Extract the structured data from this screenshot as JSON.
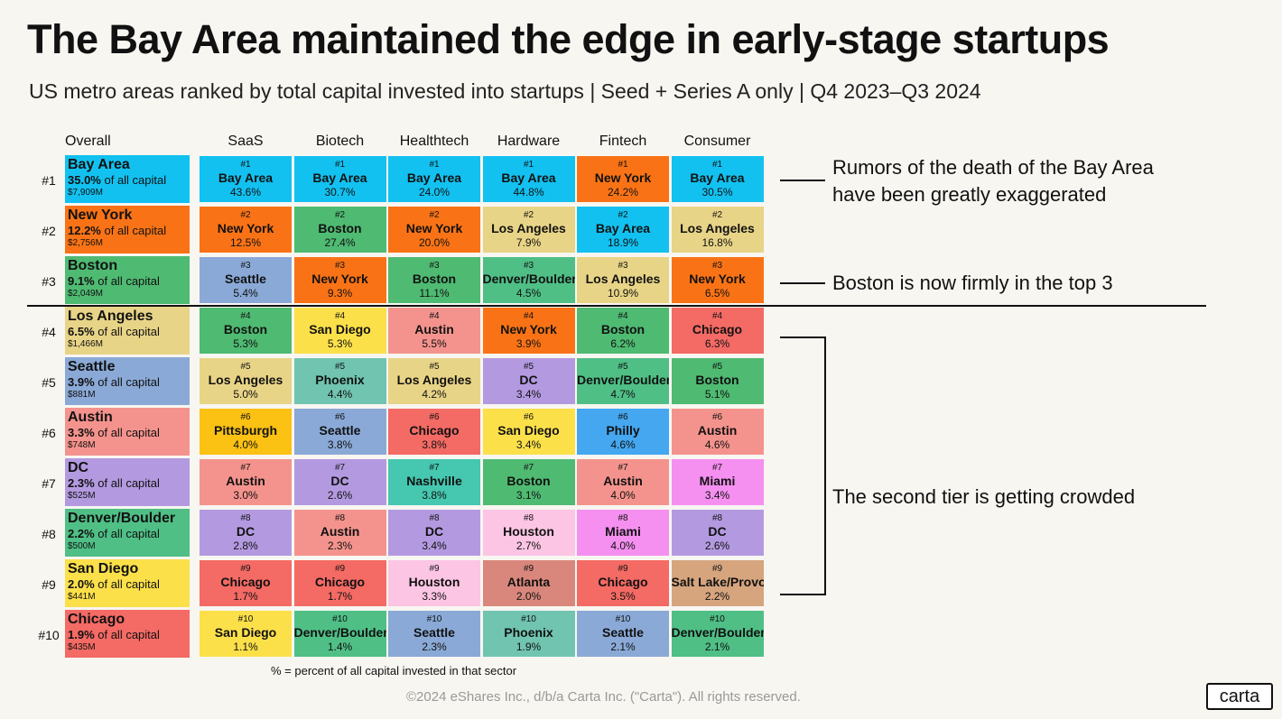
{
  "title": "The Bay Area maintained the edge in early-stage startups",
  "subtitle": "US metro areas ranked by total capital invested into startups | Seed + Series A only | Q4 2023–Q3 2024",
  "footnote": "% = percent of all capital invested in that sector",
  "copyright": "©2024 eShares Inc., d/b/a Carta Inc. (\"Carta\"). All rights reserved.",
  "logo": "carta",
  "annotations": [
    "Rumors of the death of the Bay Area have been greatly exaggerated",
    "Boston is now firmly in the top 3",
    "The second tier is getting crowded"
  ],
  "colors": {
    "Bay Area": "#12c1f0",
    "New York": "#f97316",
    "Boston": "#4fba72",
    "Los Angeles": "#e8d487",
    "Seattle": "#8aa9d6",
    "Austin": "#f4938d",
    "DC": "#b39ae0",
    "Denver/Boulder": "#4fbf86",
    "San Diego": "#fbe04a",
    "Chicago": "#f46a64",
    "Pittsburgh": "#fbc113",
    "Phoenix": "#70c4b0",
    "Nashville": "#45c7b0",
    "Houston": "#fcc5e4",
    "Atlanta": "#d9877c",
    "Philly": "#44a7f0",
    "Miami": "#f58ff0",
    "Salt Lake/Provo": "#d6a57e"
  },
  "chart_data": {
    "type": "table",
    "title": "The Bay Area maintained the edge in early-stage startups",
    "columns": [
      "Overall",
      "SaaS",
      "Biotech",
      "Healthtech",
      "Hardware",
      "Fintech",
      "Consumer"
    ],
    "overall": [
      {
        "rank": "#1",
        "metro": "Bay Area",
        "pct": "35.0%",
        "pct_suffix": " of all capital",
        "amount": "$7,909M"
      },
      {
        "rank": "#2",
        "metro": "New York",
        "pct": "12.2%",
        "pct_suffix": " of all capital",
        "amount": "$2,756M"
      },
      {
        "rank": "#3",
        "metro": "Boston",
        "pct": "9.1%",
        "pct_suffix": " of all capital",
        "amount": "$2,049M"
      },
      {
        "rank": "#4",
        "metro": "Los Angeles",
        "pct": "6.5%",
        "pct_suffix": " of all capital",
        "amount": "$1,466M"
      },
      {
        "rank": "#5",
        "metro": "Seattle",
        "pct": "3.9%",
        "pct_suffix": " of all capital",
        "amount": "$881M"
      },
      {
        "rank": "#6",
        "metro": "Austin",
        "pct": "3.3%",
        "pct_suffix": " of all capital",
        "amount": "$748M"
      },
      {
        "rank": "#7",
        "metro": "DC",
        "pct": "2.3%",
        "pct_suffix": " of all capital",
        "amount": "$525M"
      },
      {
        "rank": "#8",
        "metro": "Denver/Boulder",
        "pct": "2.2%",
        "pct_suffix": " of all capital",
        "amount": "$500M"
      },
      {
        "rank": "#9",
        "metro": "San Diego",
        "pct": "2.0%",
        "pct_suffix": " of all capital",
        "amount": "$441M"
      },
      {
        "rank": "#10",
        "metro": "Chicago",
        "pct": "1.9%",
        "pct_suffix": " of all capital",
        "amount": "$435M"
      }
    ],
    "sectors": [
      {
        "name": "SaaS",
        "entries": [
          {
            "rank": "#1",
            "metro": "Bay Area",
            "pct": "43.6%"
          },
          {
            "rank": "#2",
            "metro": "New York",
            "pct": "12.5%"
          },
          {
            "rank": "#3",
            "metro": "Seattle",
            "pct": "5.4%"
          },
          {
            "rank": "#4",
            "metro": "Boston",
            "pct": "5.3%"
          },
          {
            "rank": "#5",
            "metro": "Los Angeles",
            "pct": "5.0%"
          },
          {
            "rank": "#6",
            "metro": "Pittsburgh",
            "pct": "4.0%"
          },
          {
            "rank": "#7",
            "metro": "Austin",
            "pct": "3.0%"
          },
          {
            "rank": "#8",
            "metro": "DC",
            "pct": "2.8%"
          },
          {
            "rank": "#9",
            "metro": "Chicago",
            "pct": "1.7%"
          },
          {
            "rank": "#10",
            "metro": "San Diego",
            "pct": "1.1%"
          }
        ]
      },
      {
        "name": "Biotech",
        "entries": [
          {
            "rank": "#1",
            "metro": "Bay Area",
            "pct": "30.7%"
          },
          {
            "rank": "#2",
            "metro": "Boston",
            "pct": "27.4%"
          },
          {
            "rank": "#3",
            "metro": "New York",
            "pct": "9.3%"
          },
          {
            "rank": "#4",
            "metro": "San Diego",
            "pct": "5.3%"
          },
          {
            "rank": "#5",
            "metro": "Phoenix",
            "pct": "4.4%"
          },
          {
            "rank": "#6",
            "metro": "Seattle",
            "pct": "3.8%"
          },
          {
            "rank": "#7",
            "metro": "DC",
            "pct": "2.6%"
          },
          {
            "rank": "#8",
            "metro": "Austin",
            "pct": "2.3%"
          },
          {
            "rank": "#9",
            "metro": "Chicago",
            "pct": "1.7%"
          },
          {
            "rank": "#10",
            "metro": "Denver/Boulder",
            "pct": "1.4%"
          }
        ]
      },
      {
        "name": "Healthtech",
        "entries": [
          {
            "rank": "#1",
            "metro": "Bay Area",
            "pct": "24.0%"
          },
          {
            "rank": "#2",
            "metro": "New York",
            "pct": "20.0%"
          },
          {
            "rank": "#3",
            "metro": "Boston",
            "pct": "11.1%"
          },
          {
            "rank": "#4",
            "metro": "Austin",
            "pct": "5.5%"
          },
          {
            "rank": "#5",
            "metro": "Los Angeles",
            "pct": "4.2%"
          },
          {
            "rank": "#6",
            "metro": "Chicago",
            "pct": "3.8%"
          },
          {
            "rank": "#7",
            "metro": "Nashville",
            "pct": "3.8%"
          },
          {
            "rank": "#8",
            "metro": "DC",
            "pct": "3.4%"
          },
          {
            "rank": "#9",
            "metro": "Houston",
            "pct": "3.3%"
          },
          {
            "rank": "#10",
            "metro": "Seattle",
            "pct": "2.3%"
          }
        ]
      },
      {
        "name": "Hardware",
        "entries": [
          {
            "rank": "#1",
            "metro": "Bay Area",
            "pct": "44.8%"
          },
          {
            "rank": "#2",
            "metro": "Los Angeles",
            "pct": "7.9%"
          },
          {
            "rank": "#3",
            "metro": "Denver/Boulder",
            "pct": "4.5%"
          },
          {
            "rank": "#4",
            "metro": "New York",
            "pct": "3.9%"
          },
          {
            "rank": "#5",
            "metro": "DC",
            "pct": "3.4%"
          },
          {
            "rank": "#6",
            "metro": "San Diego",
            "pct": "3.4%"
          },
          {
            "rank": "#7",
            "metro": "Boston",
            "pct": "3.1%"
          },
          {
            "rank": "#8",
            "metro": "Houston",
            "pct": "2.7%"
          },
          {
            "rank": "#9",
            "metro": "Atlanta",
            "pct": "2.0%"
          },
          {
            "rank": "#10",
            "metro": "Phoenix",
            "pct": "1.9%"
          }
        ]
      },
      {
        "name": "Fintech",
        "entries": [
          {
            "rank": "#1",
            "metro": "New York",
            "pct": "24.2%"
          },
          {
            "rank": "#2",
            "metro": "Bay Area",
            "pct": "18.9%"
          },
          {
            "rank": "#3",
            "metro": "Los Angeles",
            "pct": "10.9%"
          },
          {
            "rank": "#4",
            "metro": "Boston",
            "pct": "6.2%"
          },
          {
            "rank": "#5",
            "metro": "Denver/Boulder",
            "pct": "4.7%"
          },
          {
            "rank": "#6",
            "metro": "Philly",
            "pct": "4.6%"
          },
          {
            "rank": "#7",
            "metro": "Austin",
            "pct": "4.0%"
          },
          {
            "rank": "#8",
            "metro": "Miami",
            "pct": "4.0%"
          },
          {
            "rank": "#9",
            "metro": "Chicago",
            "pct": "3.5%"
          },
          {
            "rank": "#10",
            "metro": "Seattle",
            "pct": "2.1%"
          }
        ]
      },
      {
        "name": "Consumer",
        "entries": [
          {
            "rank": "#1",
            "metro": "Bay Area",
            "pct": "30.5%"
          },
          {
            "rank": "#2",
            "metro": "Los Angeles",
            "pct": "16.8%"
          },
          {
            "rank": "#3",
            "metro": "New York",
            "pct": "6.5%"
          },
          {
            "rank": "#4",
            "metro": "Chicago",
            "pct": "6.3%"
          },
          {
            "rank": "#5",
            "metro": "Boston",
            "pct": "5.1%"
          },
          {
            "rank": "#6",
            "metro": "Austin",
            "pct": "4.6%"
          },
          {
            "rank": "#7",
            "metro": "Miami",
            "pct": "3.4%"
          },
          {
            "rank": "#8",
            "metro": "DC",
            "pct": "2.6%"
          },
          {
            "rank": "#9",
            "metro": "Salt Lake/Provo",
            "pct": "2.2%"
          },
          {
            "rank": "#10",
            "metro": "Denver/Boulder",
            "pct": "2.1%"
          }
        ]
      }
    ]
  }
}
